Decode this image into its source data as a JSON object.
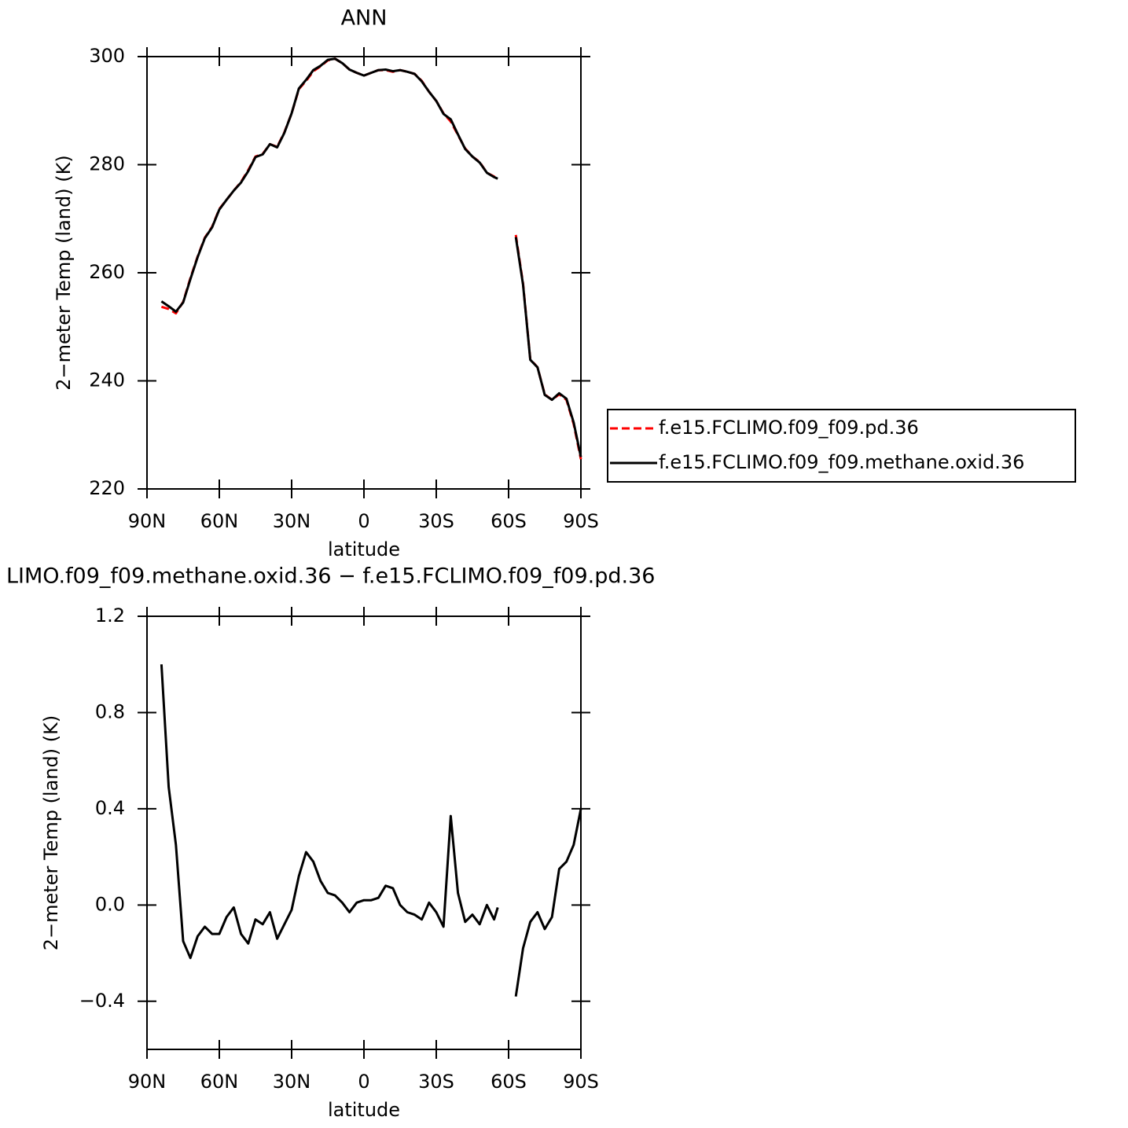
{
  "chart_data": [
    {
      "type": "line",
      "title": "ANN",
      "xlabel": "latitude",
      "ylabel": "2−meter Temp (land) (K)",
      "x": [
        84,
        81,
        78,
        75,
        72,
        69,
        66,
        63,
        60,
        57,
        54,
        51,
        48,
        45,
        42,
        39,
        36,
        33,
        30,
        27,
        24,
        21,
        18,
        15,
        12,
        9,
        6,
        3,
        0,
        -3,
        -6,
        -9,
        -12,
        -15,
        -18,
        -21,
        -24,
        -27,
        -30,
        -33,
        -36,
        -39,
        -42,
        -45,
        -48,
        -51,
        -54,
        -55.5,
        -59,
        -63,
        -66,
        -69,
        -72,
        -75,
        -78,
        -81,
        -84,
        -87,
        -90
      ],
      "series": [
        {
          "name": "f.e15.FCLIMO.f09_f09.pd.36",
          "color": "#ff0000",
          "style": "dashed",
          "values": [
            253.7,
            253.3,
            252.5,
            254.6,
            259,
            263,
            266.5,
            268.5,
            271.8,
            273.5,
            275.2,
            276.8,
            279,
            281.5,
            282,
            283.8,
            283.3,
            286,
            289.5,
            294,
            295.5,
            297.3,
            298.2,
            299.3,
            299.6,
            298.8,
            297.6,
            297.0,
            296.5,
            297.0,
            297.5,
            297.5,
            297.2,
            297.5,
            297.2,
            296.8,
            295.5,
            293.5,
            291.8,
            289.5,
            288,
            285.5,
            283,
            281.5,
            280.5,
            278.5,
            277.8,
            277.4,
            null,
            267,
            258,
            244,
            242.5,
            237.5,
            236.5,
            237.5,
            236.5,
            232,
            225.5
          ]
        },
        {
          "name": "f.e15.FCLIMO.f09_f09.methane.oxid.36",
          "color": "#000000",
          "style": "solid",
          "values": [
            254.7,
            253.8,
            252.8,
            254.5,
            258.8,
            262.9,
            266.4,
            268.4,
            271.7,
            273.5,
            275.2,
            276.7,
            278.8,
            281.4,
            281.9,
            283.8,
            283.2,
            285.9,
            289.5,
            294.1,
            295.7,
            297.5,
            298.3,
            299.4,
            299.6,
            298.8,
            297.6,
            297.0,
            296.5,
            297.0,
            297.5,
            297.6,
            297.3,
            297.5,
            297.2,
            296.8,
            295.4,
            293.5,
            291.8,
            289.4,
            288.4,
            285.6,
            282.9,
            281.5,
            280.4,
            278.5,
            277.7,
            277.4,
            null,
            266.6,
            257.8,
            243.9,
            242.5,
            237.4,
            236.5,
            237.7,
            236.7,
            232.3,
            225.9
          ]
        }
      ],
      "xlim": [
        90,
        -90
      ],
      "xticks": [
        {
          "value": 90,
          "label": "90N"
        },
        {
          "value": 60,
          "label": "60N"
        },
        {
          "value": 30,
          "label": "30N"
        },
        0,
        {
          "value": -30,
          "label": "30S"
        },
        {
          "value": -60,
          "label": "60S"
        },
        {
          "value": -90,
          "label": "90S"
        }
      ],
      "ylim": [
        220,
        300
      ],
      "yticks": [
        220,
        240,
        260,
        280,
        300
      ],
      "legend": "right"
    },
    {
      "type": "line",
      "title": "LIMO.f09_f09.methane.oxid.36 − f.e15.FCLIMO.f09_f09.pd.36",
      "xlabel": "latitude",
      "ylabel": "2−meter Temp (land) (K)",
      "x": [
        84,
        81,
        78,
        75,
        72,
        69,
        66,
        63,
        60,
        57,
        54,
        51,
        48,
        45,
        42,
        39,
        36,
        33,
        30,
        27,
        24,
        21,
        18,
        15,
        12,
        9,
        6,
        3,
        0,
        -3,
        -6,
        -9,
        -12,
        -15,
        -18,
        -21,
        -24,
        -27,
        -30,
        -33,
        -36,
        -39,
        -42,
        -45,
        -48,
        -51,
        -54,
        -55.5,
        -59,
        -63,
        -66,
        -69,
        -72,
        -75,
        -78,
        -81,
        -84,
        -87,
        -90
      ],
      "values": [
        1.0,
        0.49,
        0.25,
        -0.15,
        -0.22,
        -0.13,
        -0.09,
        -0.12,
        -0.12,
        -0.05,
        -0.01,
        -0.12,
        -0.16,
        -0.06,
        -0.08,
        -0.03,
        -0.14,
        -0.08,
        -0.02,
        0.12,
        0.22,
        0.18,
        0.1,
        0.05,
        0.04,
        0.01,
        -0.03,
        0.01,
        0.02,
        0.02,
        0.03,
        0.08,
        0.07,
        0.0,
        -0.03,
        -0.04,
        -0.06,
        0.01,
        -0.03,
        -0.09,
        0.37,
        0.05,
        -0.07,
        -0.04,
        -0.08,
        0.0,
        -0.06,
        -0.01,
        null,
        -0.38,
        -0.18,
        -0.07,
        -0.03,
        -0.1,
        -0.05,
        0.15,
        0.18,
        0.25,
        0.4
      ],
      "color": "#000000",
      "style": "solid",
      "xlim": [
        90,
        -90
      ],
      "xticks": [
        {
          "value": 90,
          "label": "90N"
        },
        {
          "value": 60,
          "label": "60N"
        },
        {
          "value": 30,
          "label": "30N"
        },
        0,
        {
          "value": -30,
          "label": "30S"
        },
        {
          "value": -60,
          "label": "60S"
        },
        {
          "value": -90,
          "label": "90S"
        }
      ],
      "ylim": [
        -0.6,
        1.2
      ],
      "yticks": [
        {
          "value": -0.4,
          "label": "−0.4"
        },
        {
          "value": 0,
          "label": "0.0"
        },
        0.4,
        0.8,
        1.2
      ]
    }
  ]
}
